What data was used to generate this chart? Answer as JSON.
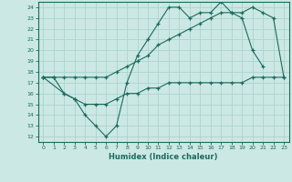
{
  "xlabel": "Humidex (Indice chaleur)",
  "xlim": [
    -0.5,
    23.5
  ],
  "ylim": [
    11.5,
    24.5
  ],
  "yticks": [
    12,
    13,
    14,
    15,
    16,
    17,
    18,
    19,
    20,
    21,
    22,
    23,
    24
  ],
  "xticks": [
    0,
    1,
    2,
    3,
    4,
    5,
    6,
    7,
    8,
    9,
    10,
    11,
    12,
    13,
    14,
    15,
    16,
    17,
    18,
    19,
    20,
    21,
    22,
    23
  ],
  "line_color": "#1a6b5a",
  "bg_color": "#cce8e4",
  "grid_color": "#aad4ce",
  "line1_x": [
    0,
    1,
    2,
    3,
    4,
    5,
    6,
    7,
    8,
    9,
    10,
    11,
    12,
    13,
    14,
    15,
    16,
    17,
    18,
    19,
    20,
    21,
    22,
    23
  ],
  "line1_y": [
    17.5,
    17.5,
    16.0,
    15.5,
    15.0,
    15.0,
    15.0,
    15.5,
    16.0,
    16.0,
    16.5,
    16.5,
    17.0,
    17.0,
    17.0,
    17.0,
    17.0,
    17.0,
    17.0,
    17.0,
    17.5,
    17.5,
    17.5,
    17.5
  ],
  "line2_x": [
    0,
    1,
    2,
    3,
    4,
    5,
    6,
    7,
    8,
    9,
    10,
    11,
    12,
    13,
    14,
    15,
    16,
    17,
    18,
    19,
    20,
    21,
    22,
    23
  ],
  "line2_y": [
    17.5,
    17.5,
    17.5,
    17.5,
    17.5,
    17.5,
    17.5,
    18.0,
    18.5,
    19.0,
    19.5,
    20.5,
    21.0,
    21.5,
    22.0,
    22.5,
    23.0,
    23.5,
    23.5,
    23.5,
    24.0,
    23.5,
    23.0,
    17.5
  ],
  "line3_x": [
    0,
    2,
    3,
    4,
    5,
    6,
    7,
    8,
    9,
    10,
    11,
    12,
    13,
    14,
    15,
    16,
    17,
    18,
    19,
    20,
    21
  ],
  "line3_y": [
    17.5,
    16.0,
    15.5,
    14.0,
    13.0,
    12.0,
    13.0,
    17.0,
    19.5,
    21.0,
    22.5,
    24.0,
    24.0,
    23.0,
    23.5,
    23.5,
    24.5,
    23.5,
    23.0,
    20.0,
    18.5
  ]
}
